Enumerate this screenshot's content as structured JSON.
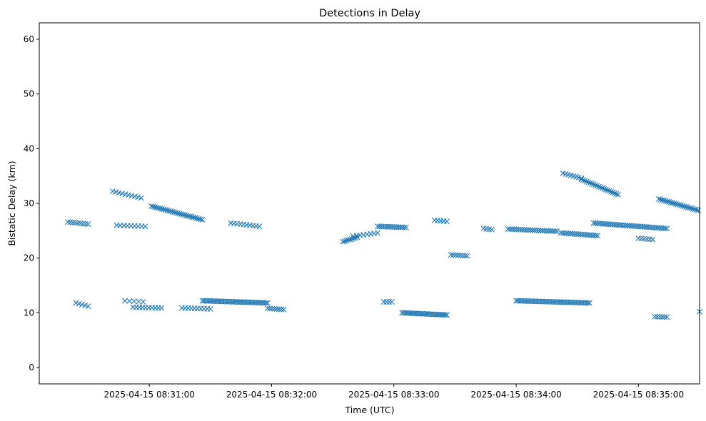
{
  "colors": {
    "marker": "#1f77b4",
    "axis": "#000000",
    "background": "#ffffff"
  },
  "chart_data": {
    "type": "scatter",
    "title": "Detections in Delay",
    "xlabel": "Time (UTC)",
    "ylabel": "Bistatic Delay (km)",
    "marker": "x",
    "x_unit": "seconds since 2025-04-15 08:30:00",
    "xlim": [
      6,
      330
    ],
    "ylim": [
      -3,
      63
    ],
    "x_ticks": [
      {
        "value": 60,
        "label": "2025-04-15 08:31:00"
      },
      {
        "value": 120,
        "label": "2025-04-15 08:32:00"
      },
      {
        "value": 180,
        "label": "2025-04-15 08:33:00"
      },
      {
        "value": 240,
        "label": "2025-04-15 08:34:00"
      },
      {
        "value": 300,
        "label": "2025-04-15 08:35:00"
      }
    ],
    "y_ticks": [
      0,
      10,
      20,
      30,
      40,
      50,
      60
    ],
    "series": [
      {
        "name": "detections",
        "points": [],
        "tracks": [
          {
            "x0": 20,
            "x1": 30,
            "y0": 26.6,
            "y1": 26.2,
            "n": 9
          },
          {
            "x0": 24,
            "x1": 30,
            "y0": 11.8,
            "y1": 11.2,
            "n": 5
          },
          {
            "x0": 42,
            "x1": 56,
            "y0": 32.2,
            "y1": 31.0,
            "n": 10
          },
          {
            "x0": 44,
            "x1": 58,
            "y0": 26.0,
            "y1": 25.8,
            "n": 9
          },
          {
            "x0": 48,
            "x1": 57,
            "y0": 12.2,
            "y1": 12.0,
            "n": 5
          },
          {
            "x0": 52,
            "x1": 66,
            "y0": 11.0,
            "y1": 10.9,
            "n": 10
          },
          {
            "x0": 61,
            "x1": 86,
            "y0": 29.5,
            "y1": 27.0,
            "n": 30
          },
          {
            "x0": 76,
            "x1": 90,
            "y0": 10.9,
            "y1": 10.7,
            "n": 10
          },
          {
            "x0": 86,
            "x1": 118,
            "y0": 12.2,
            "y1": 11.8,
            "n": 38
          },
          {
            "x0": 100,
            "x1": 114,
            "y0": 26.4,
            "y1": 25.8,
            "n": 10
          },
          {
            "x0": 118,
            "x1": 126,
            "y0": 10.8,
            "y1": 10.6,
            "n": 8
          },
          {
            "x0": 155,
            "x1": 162,
            "y0": 23.0,
            "y1": 23.8,
            "n": 9
          },
          {
            "x0": 160,
            "x1": 172,
            "y0": 24.0,
            "y1": 24.6,
            "n": 8
          },
          {
            "x0": 172,
            "x1": 186,
            "y0": 25.8,
            "y1": 25.6,
            "n": 16
          },
          {
            "x0": 175,
            "x1": 179,
            "y0": 12.0,
            "y1": 12.0,
            "n": 4
          },
          {
            "x0": 184,
            "x1": 206,
            "y0": 10.0,
            "y1": 9.6,
            "n": 28
          },
          {
            "x0": 200,
            "x1": 206,
            "y0": 26.9,
            "y1": 26.7,
            "n": 5
          },
          {
            "x0": 208,
            "x1": 216,
            "y0": 20.6,
            "y1": 20.4,
            "n": 8
          },
          {
            "x0": 224,
            "x1": 228,
            "y0": 25.4,
            "y1": 25.2,
            "n": 4
          },
          {
            "x0": 236,
            "x1": 260,
            "y0": 25.3,
            "y1": 24.9,
            "n": 25
          },
          {
            "x0": 240,
            "x1": 276,
            "y0": 12.2,
            "y1": 11.8,
            "n": 42
          },
          {
            "x0": 262,
            "x1": 280,
            "y0": 24.6,
            "y1": 24.1,
            "n": 20
          },
          {
            "x0": 263,
            "x1": 272,
            "y0": 35.5,
            "y1": 34.6,
            "n": 8
          },
          {
            "x0": 272,
            "x1": 290,
            "y0": 34.4,
            "y1": 31.6,
            "n": 22
          },
          {
            "x0": 278,
            "x1": 314,
            "y0": 26.4,
            "y1": 25.4,
            "n": 40
          },
          {
            "x0": 300,
            "x1": 307,
            "y0": 23.6,
            "y1": 23.4,
            "n": 6
          },
          {
            "x0": 308,
            "x1": 314,
            "y0": 9.3,
            "y1": 9.2,
            "n": 6
          },
          {
            "x0": 310,
            "x1": 336,
            "y0": 30.8,
            "y1": 28.0,
            "n": 32
          },
          {
            "x0": 330,
            "x1": 336,
            "y0": 10.2,
            "y1": 9.8,
            "n": 4
          }
        ]
      }
    ]
  }
}
